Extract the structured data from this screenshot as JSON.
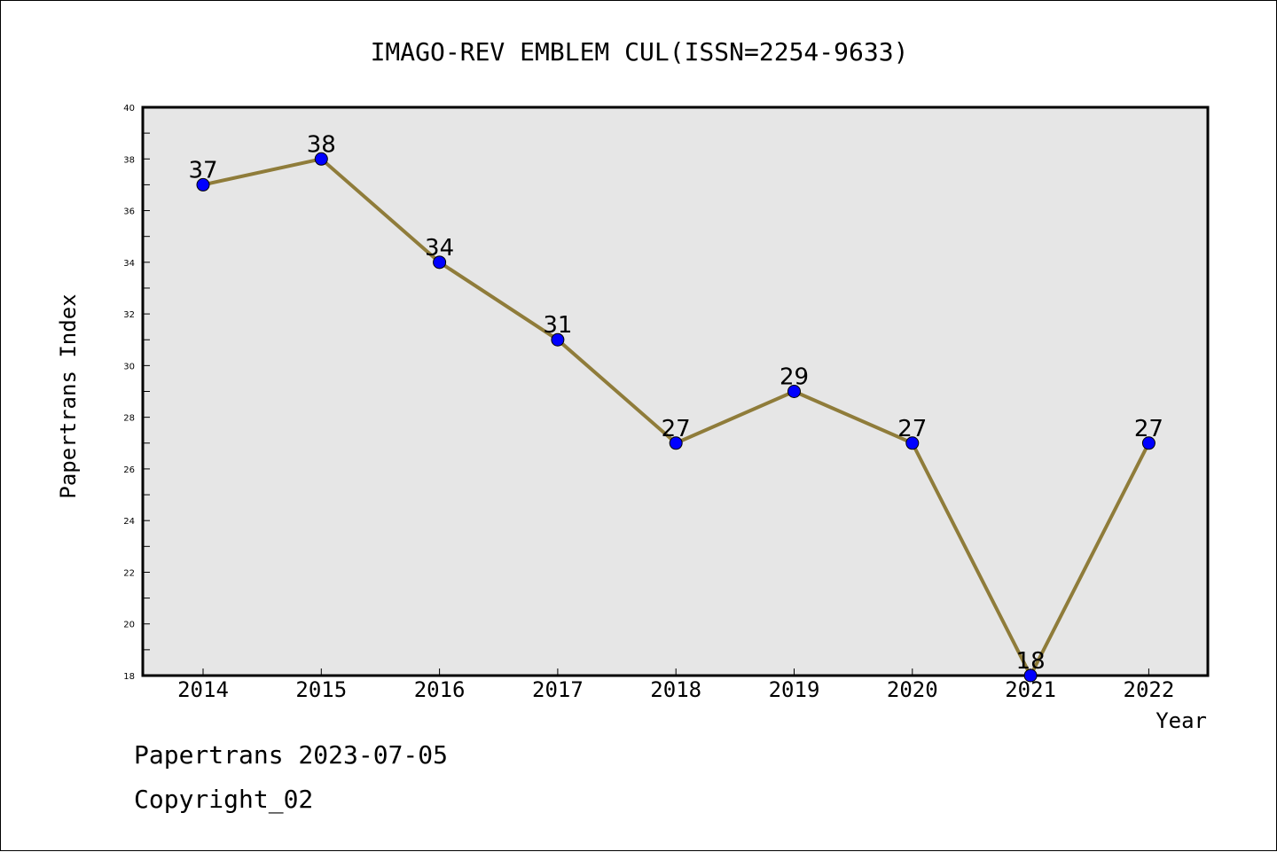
{
  "chart_data": {
    "type": "line",
    "title": "IMAGO-REV EMBLEM CUL(ISSN=2254-9633)",
    "xlabel": "Year",
    "ylabel": "Papertrans Index",
    "categories": [
      "2014",
      "2015",
      "2016",
      "2017",
      "2018",
      "2019",
      "2020",
      "2021",
      "2022"
    ],
    "series": [
      {
        "values": [
          37,
          38,
          34,
          31,
          27,
          29,
          27,
          18,
          27
        ],
        "line_color": "#8f7c3a",
        "marker_color": "#0000ff"
      }
    ],
    "ylim": [
      18,
      40
    ],
    "yticks": [
      18,
      20,
      22,
      24,
      26,
      28,
      30,
      32,
      34,
      36,
      38,
      40
    ],
    "grid": false,
    "data_labels": true,
    "plot_background": "#e6e6e6"
  },
  "footer": {
    "line1": "Papertrans 2023-07-05",
    "line2": "Copyright_02"
  }
}
